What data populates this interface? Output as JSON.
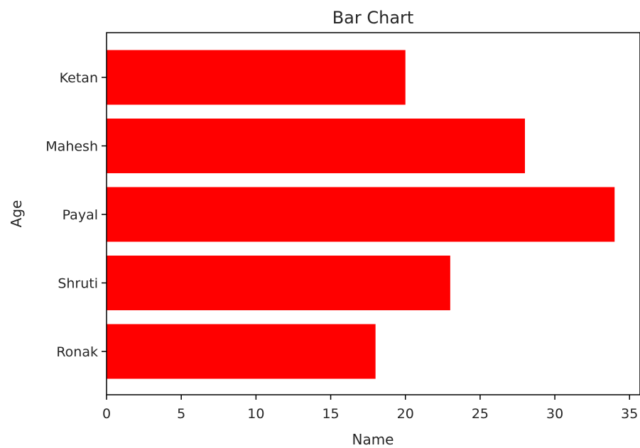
{
  "chart_data": {
    "type": "bar",
    "orientation": "horizontal",
    "title": "Bar Chart",
    "xlabel": "Name",
    "ylabel": "Age",
    "categories": [
      "Ronak",
      "Shruti",
      "Payal",
      "Mahesh",
      "Ketan"
    ],
    "values": [
      18,
      23,
      34,
      28,
      20
    ],
    "xlim": [
      0,
      35.7
    ],
    "xticks": [
      0,
      5,
      10,
      15,
      20,
      25,
      30,
      35
    ],
    "bar_color": "#ff0000",
    "grid": false,
    "legend": "none"
  }
}
